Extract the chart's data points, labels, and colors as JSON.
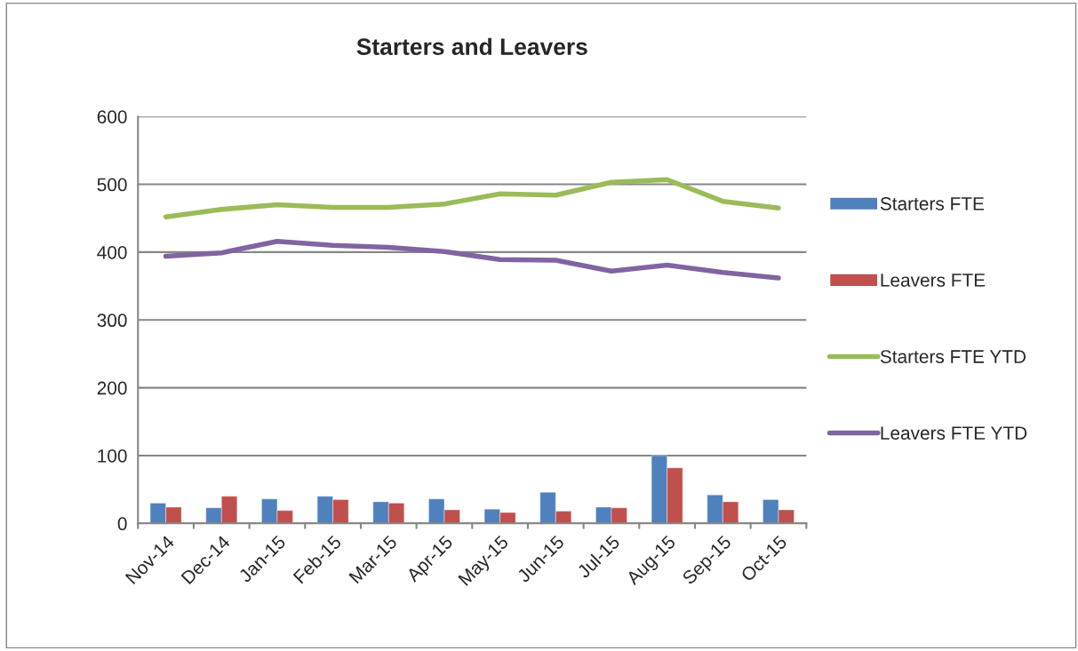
{
  "chart_data": {
    "type": "bar",
    "title": "Starters and Leavers",
    "categories": [
      "Nov-14",
      "Dec-14",
      "Jan-15",
      "Feb-15",
      "Mar-15",
      "Apr-15",
      "May-15",
      "Jun-15",
      "Jul-15",
      "Aug-15",
      "Sep-15",
      "Oct-15"
    ],
    "series": [
      {
        "name": "Starters FTE",
        "color": "#4f81bd",
        "values": [
          30,
          23,
          36,
          40,
          32,
          36,
          21,
          46,
          24,
          100,
          42,
          35
        ]
      },
      {
        "name": "Leavers FTE",
        "color": "#c0504d",
        "values": [
          24,
          40,
          19,
          35,
          30,
          20,
          16,
          18,
          23,
          82,
          32,
          20
        ]
      },
      {
        "name": "Starters FTE YTD",
        "type": "line",
        "color": "#9bbb59",
        "values": [
          452,
          463,
          470,
          466,
          466,
          471,
          486,
          484,
          503,
          507,
          475,
          465
        ]
      },
      {
        "name": "Leavers FTE YTD",
        "type": "line",
        "color": "#8064a2",
        "values": [
          394,
          399,
          416,
          410,
          407,
          401,
          389,
          388,
          372,
          381,
          370,
          362
        ]
      }
    ],
    "ylim": [
      0,
      600
    ],
    "yticks": [
      0,
      100,
      200,
      300,
      400,
      500,
      600
    ],
    "grid": "y",
    "legend": "right",
    "marker": "none"
  }
}
